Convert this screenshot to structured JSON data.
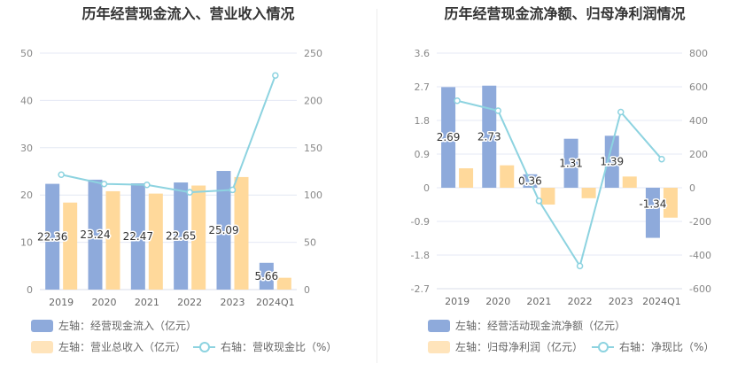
{
  "chart_data": [
    {
      "type": "bar",
      "title": "历年经营现金流入、营业收入情况",
      "categories": [
        "2019",
        "2020",
        "2021",
        "2022",
        "2023",
        "2024Q1"
      ],
      "series": [
        {
          "name": "左轴：经营现金流入（亿元）",
          "type": "bar",
          "axis": "left",
          "color": "#8eaadb",
          "values": [
            22.36,
            23.24,
            22.47,
            22.65,
            25.09,
            5.66
          ],
          "labels": true
        },
        {
          "name": "左轴：营业总收入（亿元）",
          "type": "bar",
          "axis": "left",
          "color": "#ffd99b",
          "values": [
            18.4,
            20.8,
            20.3,
            22.0,
            23.8,
            2.5
          ]
        },
        {
          "name": "右轴：营收现金比（%）",
          "type": "line",
          "axis": "right",
          "color": "#8dd3e0",
          "values": [
            121.5,
            111.7,
            110.7,
            102.9,
            105.4,
            226.4
          ]
        }
      ],
      "y_left": {
        "ticks": [
          "0",
          "10",
          "20",
          "30",
          "40",
          "50"
        ],
        "range": [
          0,
          50
        ]
      },
      "y_right": {
        "ticks": [
          "0",
          "50",
          "100",
          "150",
          "200",
          "250"
        ],
        "range": [
          0,
          250
        ]
      },
      "grid": true,
      "legend_position": "bottom"
    },
    {
      "type": "bar",
      "title": "历年经营现金流净额、归母净利润情况",
      "categories": [
        "2019",
        "2020",
        "2021",
        "2022",
        "2023",
        "2024Q1"
      ],
      "series": [
        {
          "name": "左轴：经营活动现金流净额（亿元）",
          "type": "bar",
          "axis": "left",
          "color": "#8eaadb",
          "values": [
            2.69,
            2.73,
            0.36,
            1.31,
            1.39,
            -1.34
          ],
          "labels": true
        },
        {
          "name": "左轴：归母净利润（亿元）",
          "type": "bar",
          "axis": "left",
          "color": "#ffd99b",
          "values": [
            0.52,
            0.6,
            -0.45,
            -0.28,
            0.3,
            -0.8
          ]
        },
        {
          "name": "右轴：净现比（%）",
          "type": "line",
          "axis": "right",
          "color": "#8dd3e0",
          "values": [
            517,
            458,
            -78,
            -465,
            450,
            170
          ]
        }
      ],
      "y_left": {
        "ticks": [
          "-2.7",
          "-1.8",
          "-0.9",
          "0",
          "0.9",
          "1.8",
          "2.7",
          "3.6"
        ],
        "range": [
          -2.7,
          3.6
        ]
      },
      "y_right": {
        "ticks": [
          "-600",
          "-400",
          "-200",
          "0",
          "200",
          "400",
          "600",
          "800"
        ],
        "range": [
          -600,
          800
        ]
      },
      "grid": true,
      "legend_position": "bottom"
    }
  ]
}
